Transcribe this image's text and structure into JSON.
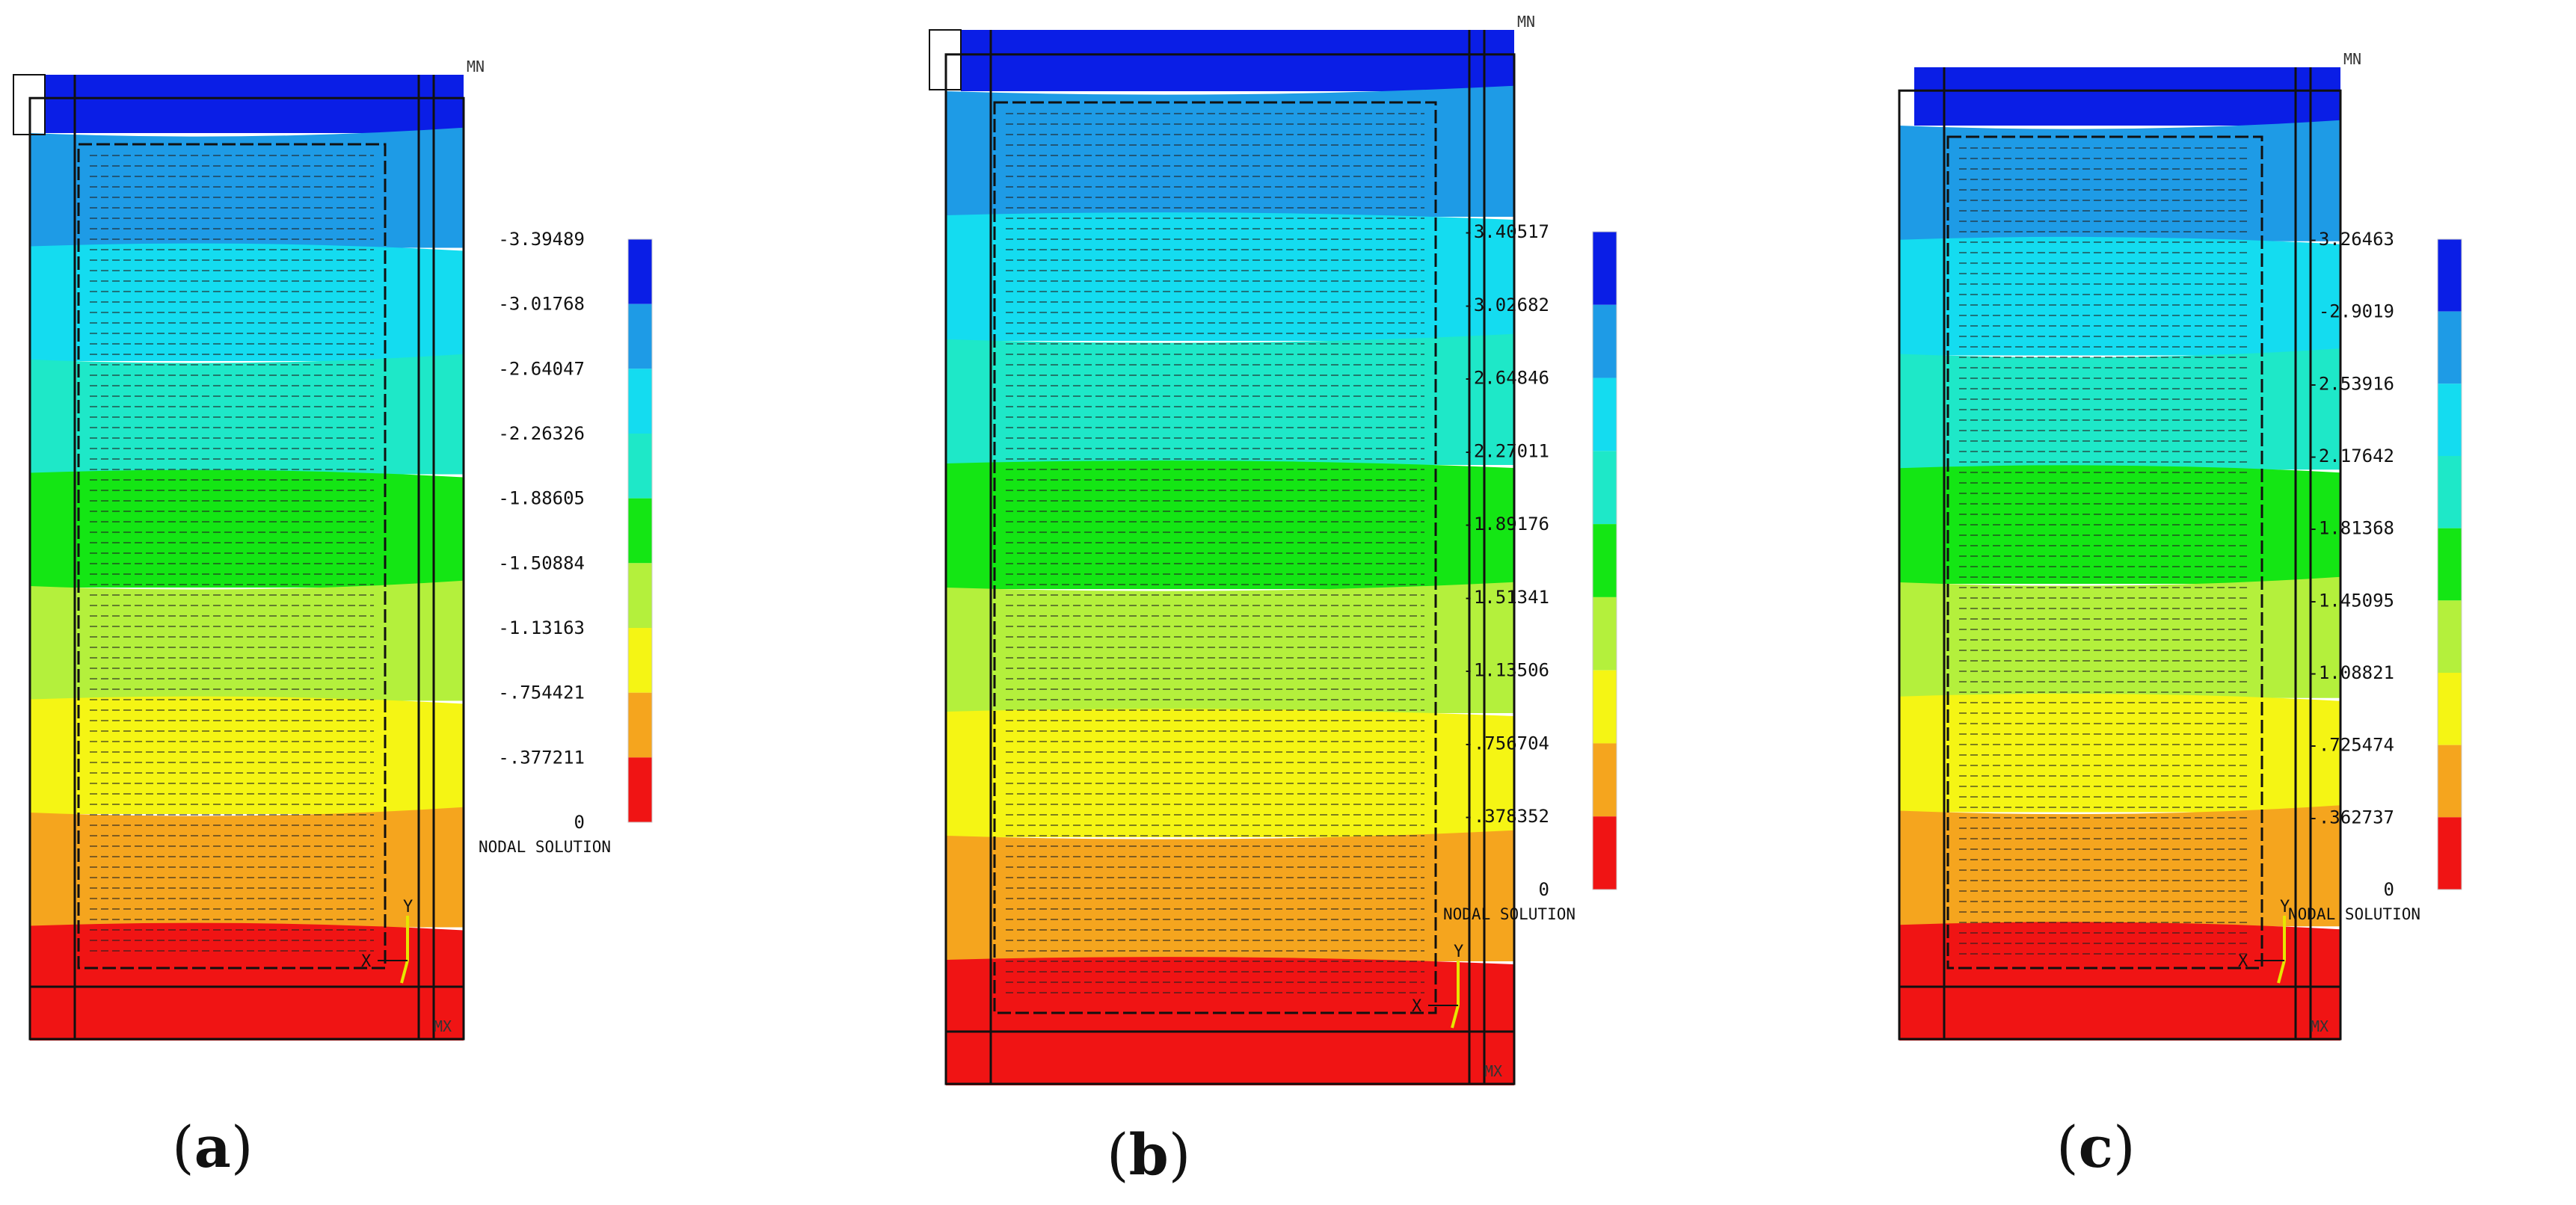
{
  "legend_title": "NODAL SOLUTION",
  "mn_label": "MN",
  "mx_label": "MX",
  "axis_x_label": "X",
  "axis_y_label": "Y",
  "colors": {
    "bands_top_to_bottom": [
      "#0a1ee6",
      "#1e9be6",
      "#14dcf0",
      "#1ee8c8",
      "#14e614",
      "#b4f03c",
      "#f5f514",
      "#f5a51e",
      "#f01414"
    ]
  },
  "panels": [
    {
      "id": "a",
      "label_open": "(",
      "label_letter": "a",
      "label_close": ")",
      "legend_values": [
        "-3.39489",
        "-3.01768",
        "-2.64047",
        "-2.26326",
        "-1.88605",
        "-1.50884",
        "-1.13163",
        "-.754421",
        "-.377211",
        "0"
      ]
    },
    {
      "id": "b",
      "label_open": "(",
      "label_letter": "b",
      "label_close": ")",
      "legend_values": [
        "-3.40517",
        "-3.02682",
        "-2.64846",
        "-2.27011",
        "-1.89176",
        "-1.51341",
        "-1.13506",
        "-.756704",
        "-.378352",
        "0"
      ]
    },
    {
      "id": "c",
      "label_open": "(",
      "label_letter": "c",
      "label_close": ")",
      "legend_values": [
        "-3.26463",
        "-2.9019",
        "-2.53916",
        "-2.17642",
        "-1.81368",
        "-1.45095",
        "-1.08821",
        "-.725474",
        "-.362737",
        "0"
      ]
    }
  ]
}
